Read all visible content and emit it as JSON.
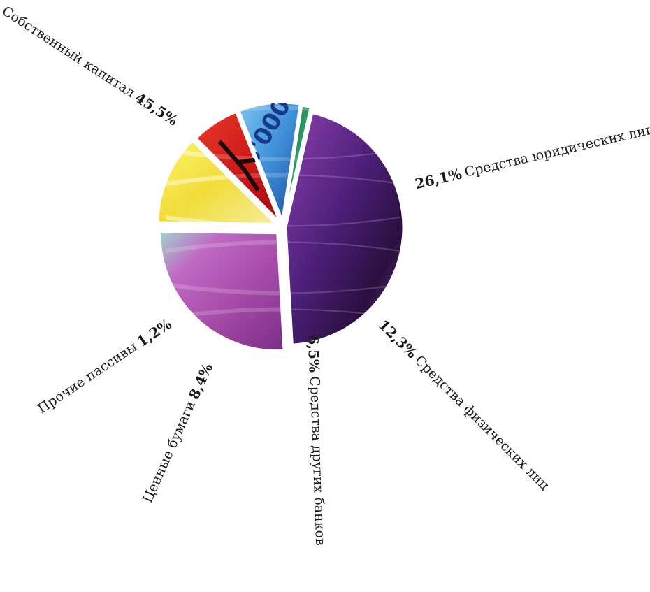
{
  "chart_data": {
    "type": "pie",
    "title": "",
    "slices": [
      {
        "label": "Собственный капитал",
        "value": 45.5,
        "value_label": "45,5%",
        "color": "#5b2a86",
        "texture": "purple-mosaic",
        "value_first": false
      },
      {
        "label": "Средства юридических лиц",
        "value": 26.1,
        "value_label": "26,1%",
        "color": "#b05ab8",
        "texture": "pink-marble",
        "value_first": true
      },
      {
        "label": "Средства физических лиц",
        "value": 12.3,
        "value_label": "12,3%",
        "color": "#f2e24a",
        "texture": "yellow-fabric",
        "value_first": true
      },
      {
        "label": "Средства других банков",
        "value": 6.5,
        "value_label": "6,5%",
        "color": "#d62020",
        "texture": "red-ink",
        "value_first": true
      },
      {
        "label": "Ценные бумаги",
        "value": 8.4,
        "value_label": "8,4%",
        "color": "#4a9fe0",
        "texture": "blue-banknote",
        "value_first": false
      },
      {
        "label": "Прочие пассивы",
        "value": 1.2,
        "value_label": "1,2%",
        "color": "#2f8a7a",
        "texture": "green-yellow",
        "value_first": false
      }
    ],
    "banknote_text": "5'000"
  }
}
